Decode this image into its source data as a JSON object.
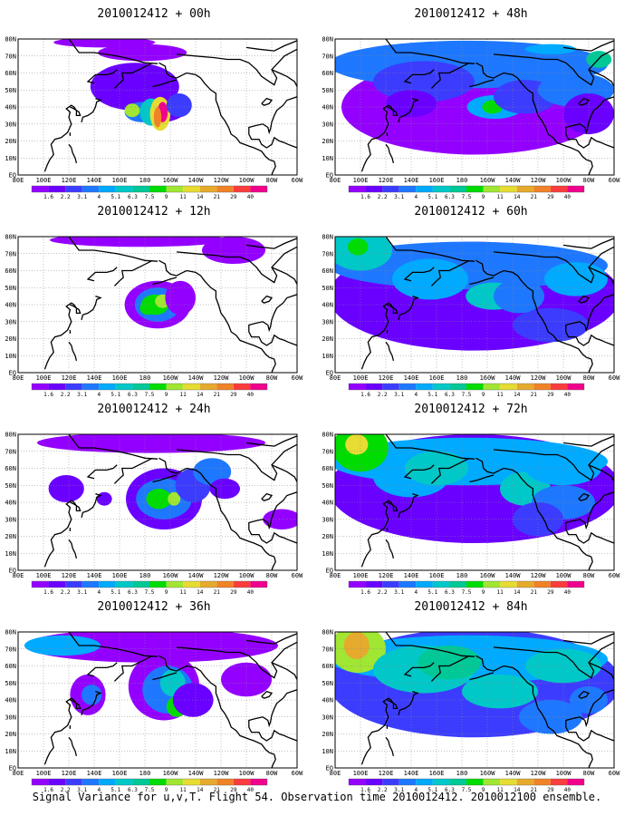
{
  "caption": "Signal Variance for u,v,T. Flight 54. Observation time 2010012412. 2010012100 ensemble.",
  "lat_labels": [
    "80N",
    "70N",
    "60N",
    "50N",
    "40N",
    "30N",
    "20N",
    "10N",
    "EQ"
  ],
  "lon_labels": [
    "80E",
    "100E",
    "120E",
    "140E",
    "160E",
    "180",
    "160W",
    "140W",
    "120W",
    "100W",
    "80W",
    "60W"
  ],
  "colorbar": {
    "labels": [
      "1.6",
      "2.2",
      "3.1",
      "4",
      "5.1",
      "6.3",
      "7.5",
      "9",
      "11",
      "14",
      "21",
      "29",
      "40"
    ],
    "colors": [
      "#9400ff",
      "#6a00ff",
      "#3c3cff",
      "#1e78ff",
      "#00aaff",
      "#00c8c8",
      "#00c896",
      "#00dc00",
      "#a0e632",
      "#e6dc32",
      "#e6aa2d",
      "#f08228",
      "#fa3c3c",
      "#f0008c"
    ]
  },
  "chart_data": [
    {
      "type": "heatmap",
      "title": "2010012412 + 00h",
      "forecast_hour": 0
    },
    {
      "type": "heatmap",
      "title": "2010012412 + 48h",
      "forecast_hour": 48
    },
    {
      "type": "heatmap",
      "title": "2010012412 + 12h",
      "forecast_hour": 12
    },
    {
      "type": "heatmap",
      "title": "2010012412 + 60h",
      "forecast_hour": 60
    },
    {
      "type": "heatmap",
      "title": "2010012412 + 24h",
      "forecast_hour": 24
    },
    {
      "type": "heatmap",
      "title": "2010012412 + 72h",
      "forecast_hour": 72
    },
    {
      "type": "heatmap",
      "title": "2010012412 + 36h",
      "forecast_hour": 36
    },
    {
      "type": "heatmap",
      "title": "2010012412 + 84h",
      "forecast_hour": 84
    }
  ]
}
